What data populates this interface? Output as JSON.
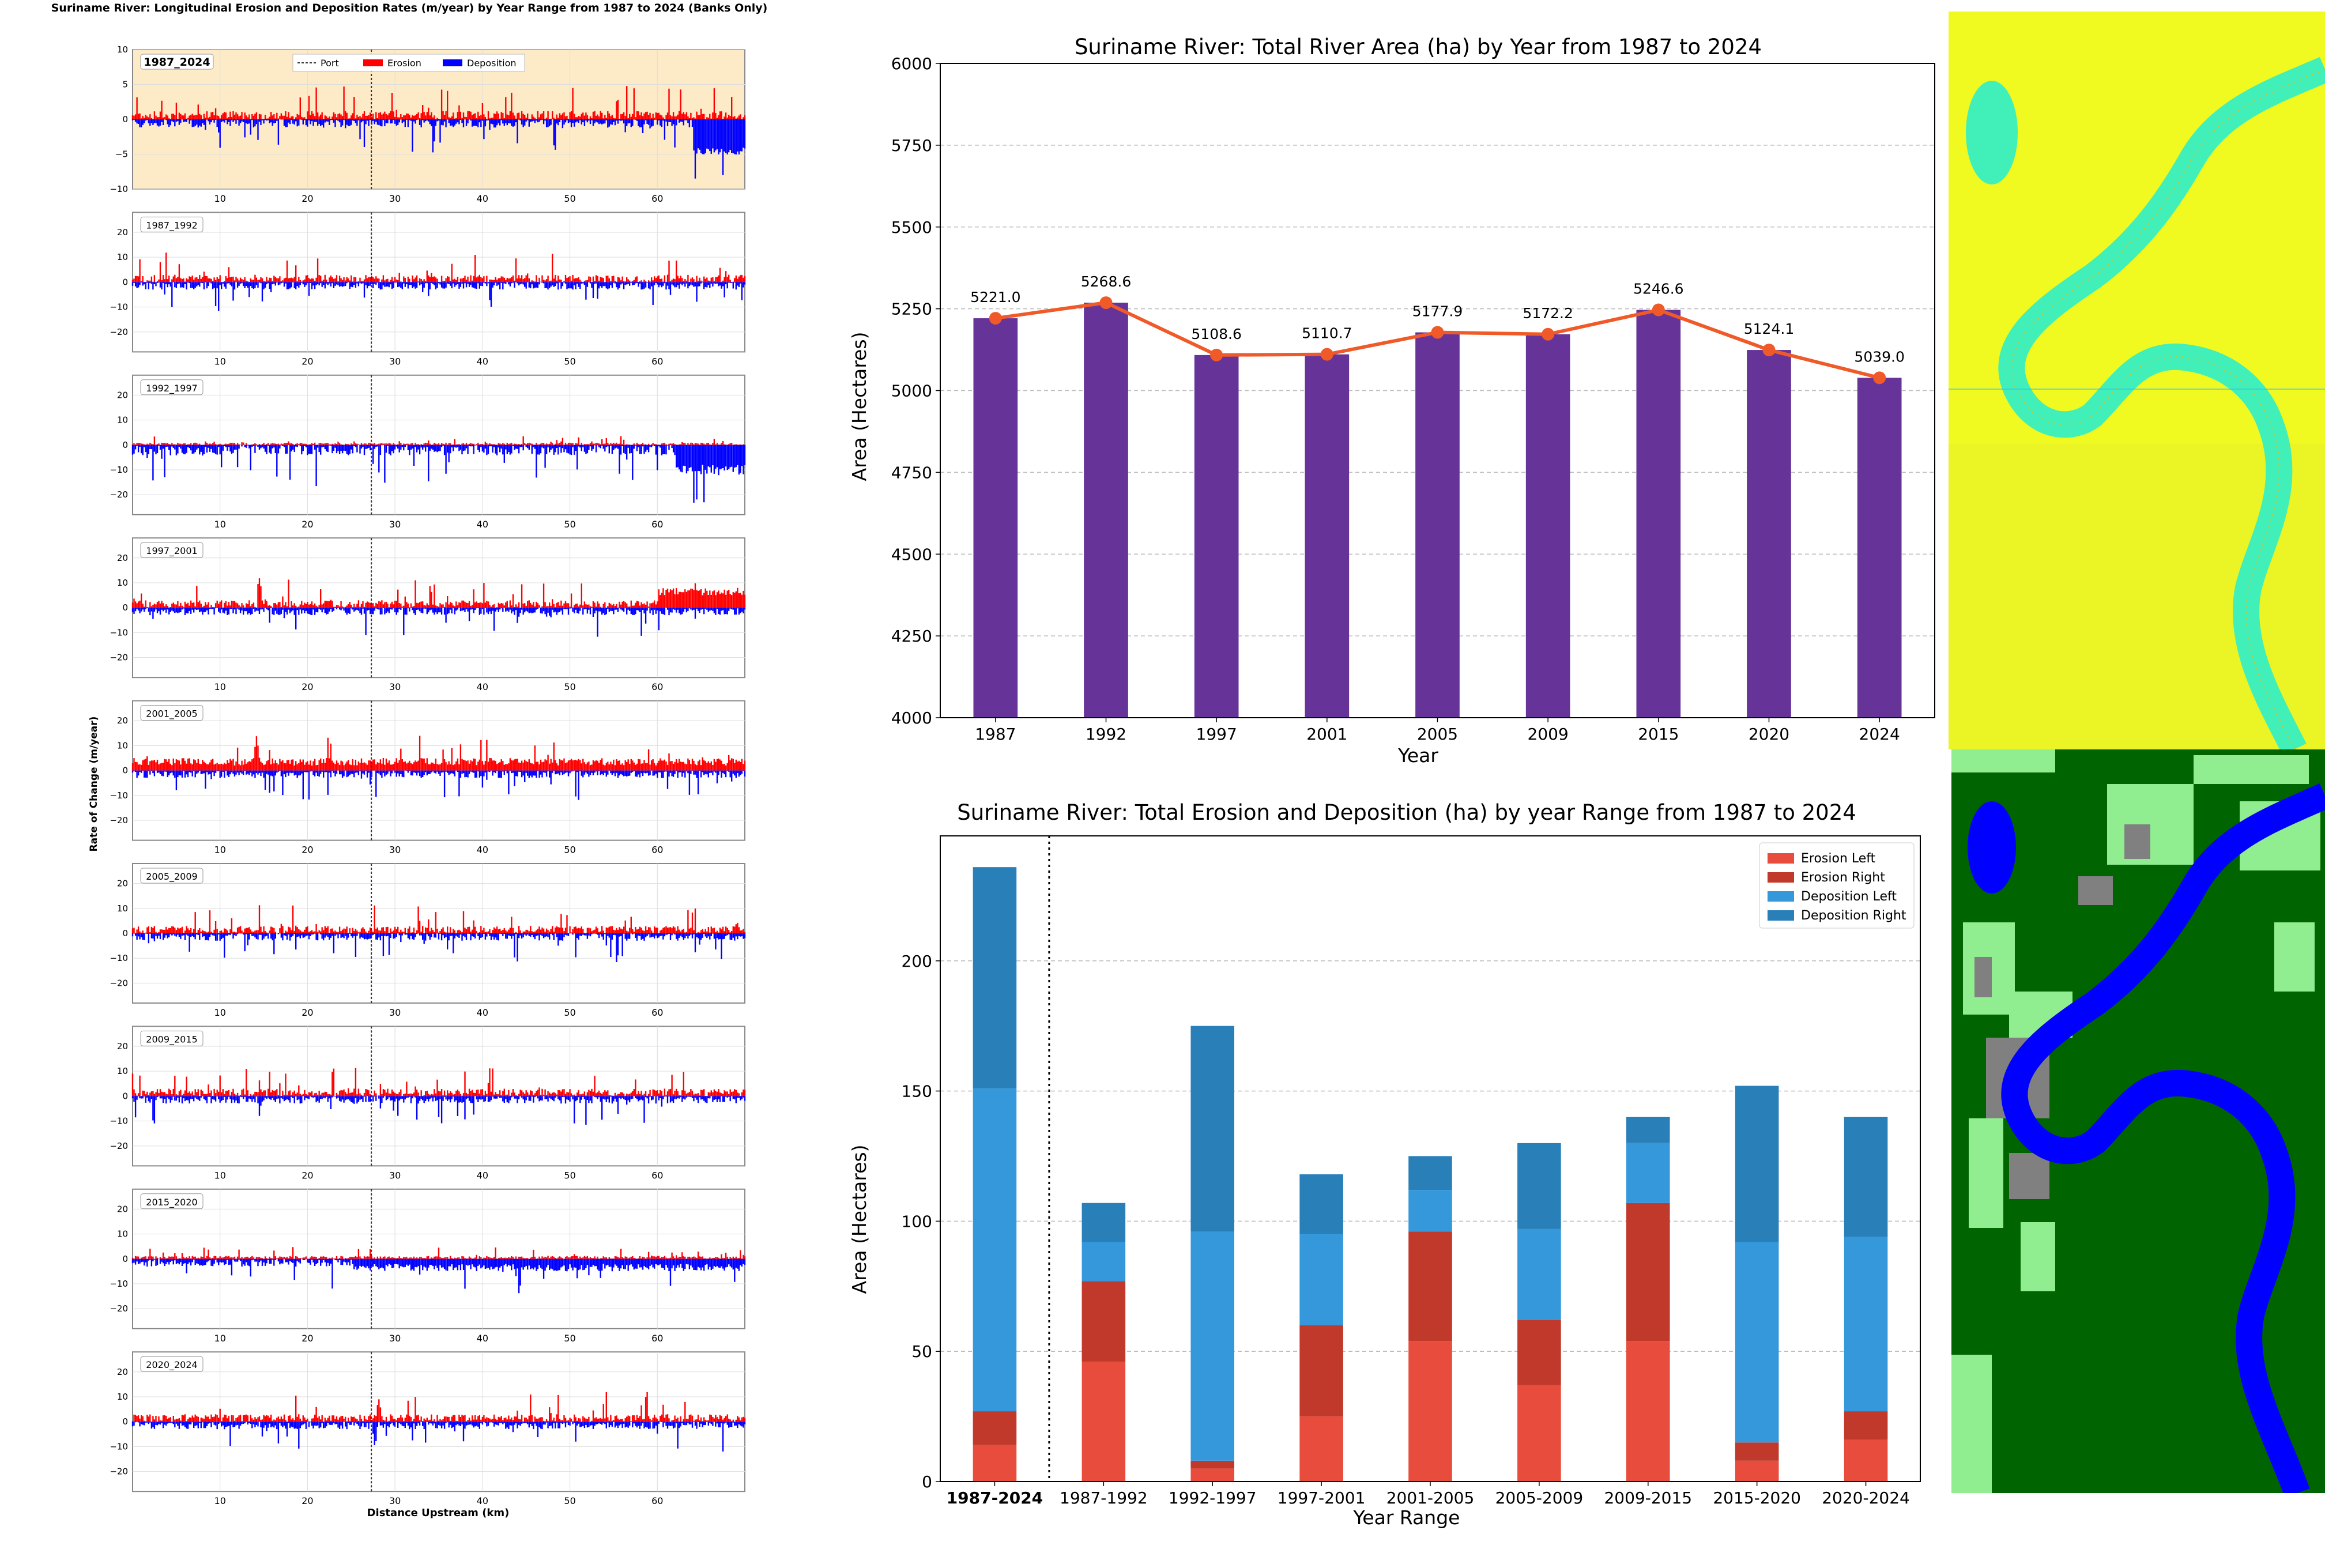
{
  "colors": {
    "erosion": "#ff0000",
    "deposition": "#0000ff",
    "bar_purple": "#663399",
    "line_orange": "#f05a28",
    "erosion_left": "#e74c3c",
    "erosion_right": "#c0392b",
    "deposition_left": "#3498db",
    "deposition_right": "#2980b9",
    "panel_highlight": "#fdebc8",
    "map_yellow": "#f2ff1e",
    "map_water_cyan": "#40f0b8",
    "map_green": "#006400",
    "map_light_green": "#90ee90",
    "map_gray": "#808080",
    "map_blue": "#0000ff"
  },
  "left_figure": {
    "suptitle": "Suriname River: Longitudinal Erosion and Deposition Rates (m/year) by Year Range from 1987 to 2024 (Banks Only)",
    "ylabel": "Rate of Change (m/year)",
    "xlabel": "Distance Upstream (km)",
    "legend": [
      "Port",
      "Erosion",
      "Deposition"
    ],
    "x_ticks": [
      "10",
      "20",
      "30",
      "40",
      "50",
      "60"
    ],
    "x_range": [
      0,
      70
    ],
    "port_km": 27.3,
    "panels": [
      {
        "label": "1987_2024",
        "y_ticks": [
          "10",
          "5",
          "0",
          "−5",
          "−10"
        ],
        "ylim": [
          -10,
          10
        ],
        "bold": true
      },
      {
        "label": "1987_1992",
        "y_ticks": [
          "20",
          "10",
          "0",
          "−10",
          "−20"
        ],
        "ylim": [
          -28,
          28
        ]
      },
      {
        "label": "1992_1997",
        "y_ticks": [
          "20",
          "10",
          "0",
          "−10",
          "−20"
        ],
        "ylim": [
          -28,
          28
        ]
      },
      {
        "label": "1997_2001",
        "y_ticks": [
          "20",
          "10",
          "0",
          "−10",
          "−20"
        ],
        "ylim": [
          -28,
          28
        ]
      },
      {
        "label": "2001_2005",
        "y_ticks": [
          "20",
          "10",
          "0",
          "−10",
          "−20"
        ],
        "ylim": [
          -28,
          28
        ]
      },
      {
        "label": "2005_2009",
        "y_ticks": [
          "20",
          "10",
          "0",
          "−10",
          "−20"
        ],
        "ylim": [
          -28,
          28
        ]
      },
      {
        "label": "2009_2015",
        "y_ticks": [
          "20",
          "10",
          "0",
          "−10",
          "−20"
        ],
        "ylim": [
          -28,
          28
        ]
      },
      {
        "label": "2015_2020",
        "y_ticks": [
          "20",
          "10",
          "0",
          "−10",
          "−20"
        ],
        "ylim": [
          -28,
          28
        ]
      },
      {
        "label": "2020_2024",
        "y_ticks": [
          "20",
          "10",
          "0",
          "−10",
          "−20"
        ],
        "ylim": [
          -28,
          28
        ]
      }
    ]
  },
  "chart_data": [
    {
      "type": "bar",
      "title": "Suriname River: Total River Area (ha) by Year from 1987 to 2024",
      "xlabel": "Year",
      "ylabel": "Area (Hectares)",
      "ylim": [
        4000,
        6000
      ],
      "y_ticks": [
        "4000",
        "4250",
        "4500",
        "4750",
        "5000",
        "5250",
        "5500",
        "5750",
        "6000"
      ],
      "grid": "horizontal dashed",
      "categories": [
        "1987",
        "1992",
        "1997",
        "2001",
        "2005",
        "2009",
        "2015",
        "2020",
        "2024"
      ],
      "values": [
        5221.0,
        5268.6,
        5108.6,
        5110.7,
        5177.9,
        5172.2,
        5246.6,
        5124.1,
        5039.0
      ],
      "data_labels": [
        "5221.0",
        "5268.6",
        "5108.6",
        "5110.7",
        "5177.9",
        "5172.2",
        "5246.6",
        "5124.1",
        "5039.0"
      ],
      "overlay": "line with markers over same values"
    },
    {
      "type": "bar",
      "stacked": true,
      "title": "Suriname River: Total Erosion and Deposition (ha) by year Range from 1987 to 2024",
      "xlabel": "Year Range",
      "ylabel": "Area (Hectares)",
      "ylim": [
        0,
        248
      ],
      "y_ticks": [
        "0",
        "50",
        "100",
        "150",
        "200"
      ],
      "grid": "horizontal dashed",
      "legend_position": "top-right",
      "categories": [
        "1987-2024",
        "1987-1992",
        "1992-1997",
        "1997-2001",
        "2001-2005",
        "2005-2009",
        "2009-2015",
        "2015-2020",
        "2020-2024"
      ],
      "series": [
        {
          "name": "Erosion Left",
          "values": [
            14,
            46,
            5,
            25,
            54,
            37,
            54,
            8,
            16
          ]
        },
        {
          "name": "Erosion Right",
          "values": [
            13,
            31,
            3,
            35,
            42,
            25,
            53,
            7,
            11
          ]
        },
        {
          "name": "Deposition Left",
          "values": [
            124,
            15,
            88,
            35,
            16,
            35,
            23,
            77,
            67
          ]
        },
        {
          "name": "Deposition Right",
          "values": [
            85,
            15,
            79,
            23,
            13,
            33,
            10,
            60,
            46
          ]
        }
      ]
    }
  ]
}
